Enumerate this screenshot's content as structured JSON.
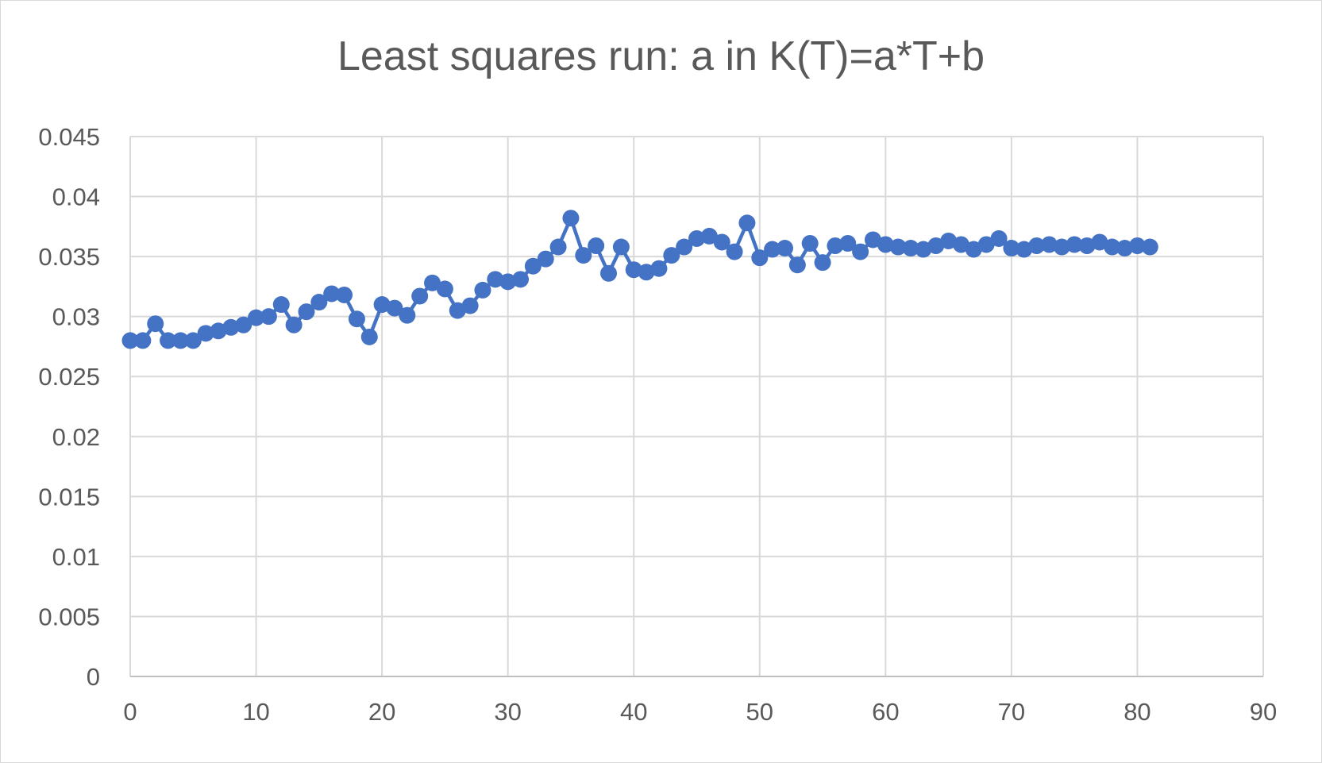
{
  "chart_data": {
    "type": "line",
    "title": "Least squares run: a in K(T)=a*T+b",
    "xlabel": "",
    "ylabel": "",
    "xlim": [
      0,
      90
    ],
    "ylim": [
      0,
      0.045
    ],
    "x_ticks": [
      0,
      10,
      20,
      30,
      40,
      50,
      60,
      70,
      80,
      90
    ],
    "y_ticks": [
      0,
      0.005,
      0.01,
      0.015,
      0.02,
      0.025,
      0.03,
      0.035,
      0.04,
      0.045
    ],
    "x_tick_labels": [
      "0",
      "10",
      "20",
      "30",
      "40",
      "50",
      "60",
      "70",
      "80",
      "90"
    ],
    "y_tick_labels": [
      "0",
      "0.005",
      "0.01",
      "0.015",
      "0.02",
      "0.025",
      "0.03",
      "0.035",
      "0.04",
      "0.045"
    ],
    "grid": true,
    "legend": "none",
    "colors": {
      "series": "#4472c4",
      "grid": "#d9d9d9",
      "axis": "#bfbfbf",
      "text": "#595959"
    },
    "series": [
      {
        "x": [
          0,
          1,
          2,
          3,
          4,
          5,
          6,
          7,
          8,
          9,
          10,
          11,
          12,
          13,
          14,
          15,
          16,
          17,
          18,
          19,
          20,
          21,
          22,
          23,
          24,
          25,
          26,
          27,
          28,
          29,
          30,
          31,
          32,
          33,
          34,
          35,
          36,
          37,
          38,
          39,
          40,
          41,
          42,
          43,
          44,
          45,
          46,
          47,
          48,
          49,
          50,
          51,
          52,
          53,
          54,
          55,
          56,
          57,
          58,
          59,
          60,
          61,
          62,
          63,
          64,
          65,
          66,
          67,
          68,
          69,
          70,
          71,
          72,
          73,
          74,
          75,
          76,
          77,
          78,
          79,
          80,
          81
        ],
        "values": [
          0.028,
          0.028,
          0.0294,
          0.028,
          0.028,
          0.028,
          0.0286,
          0.0288,
          0.0291,
          0.0293,
          0.0299,
          0.03,
          0.031,
          0.0293,
          0.0304,
          0.0312,
          0.0319,
          0.0318,
          0.0298,
          0.0283,
          0.031,
          0.0307,
          0.0301,
          0.0317,
          0.0328,
          0.0323,
          0.0305,
          0.0309,
          0.0322,
          0.0331,
          0.0329,
          0.0331,
          0.0342,
          0.0348,
          0.0358,
          0.0382,
          0.0351,
          0.0359,
          0.0336,
          0.0358,
          0.0339,
          0.0337,
          0.034,
          0.0351,
          0.0358,
          0.0365,
          0.0367,
          0.0362,
          0.0354,
          0.0378,
          0.0349,
          0.0356,
          0.0357,
          0.0343,
          0.0361,
          0.0345,
          0.0359,
          0.0361,
          0.0354,
          0.0364,
          0.036,
          0.0358,
          0.0357,
          0.0356,
          0.0359,
          0.0363,
          0.036,
          0.0356,
          0.036,
          0.0365,
          0.0357,
          0.0356,
          0.0359,
          0.036,
          0.0358,
          0.036,
          0.0359,
          0.0362,
          0.0358,
          0.0357,
          0.0359,
          0.0358
        ]
      }
    ]
  }
}
